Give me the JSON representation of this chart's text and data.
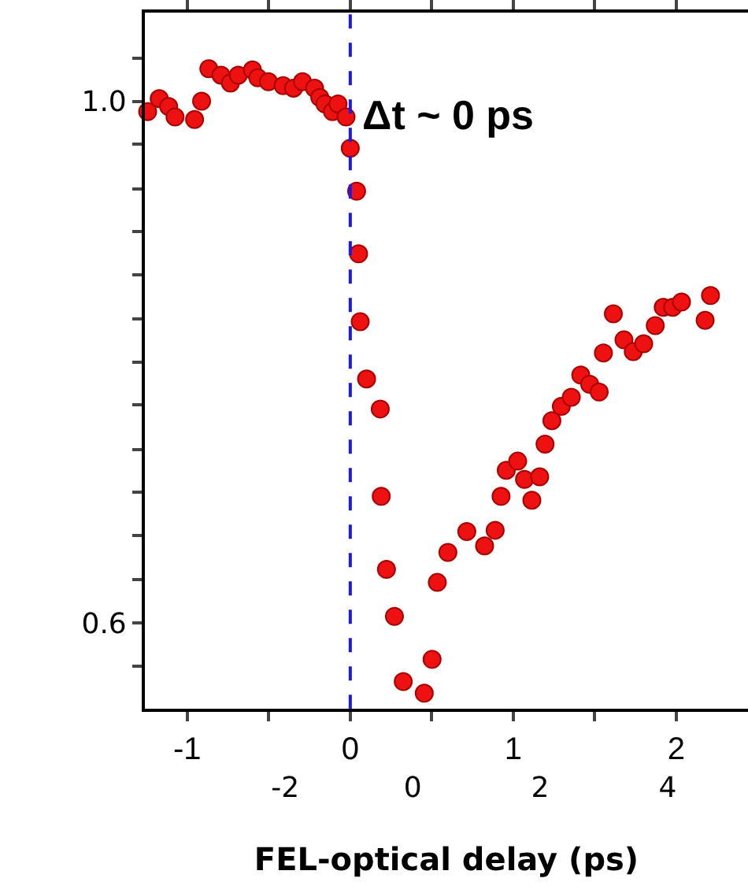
{
  "chart_data": {
    "type": "scatter",
    "xlabel": "FEL-optical delay (ps)",
    "marker": "circle",
    "x": [
      -1.243,
      -1.172,
      -1.114,
      -1.075,
      -0.955,
      -0.912,
      -0.868,
      -0.793,
      -0.735,
      -0.687,
      -0.6,
      -0.567,
      -0.502,
      -0.412,
      -0.348,
      -0.293,
      -0.219,
      -0.187,
      -0.155,
      -0.109,
      -0.075,
      -0.026,
      0.0,
      0.039,
      0.051,
      0.061,
      0.1,
      0.184,
      0.19,
      0.222,
      0.271,
      0.325,
      0.454,
      0.502,
      0.534,
      0.599,
      0.715,
      0.824,
      0.889,
      0.925,
      0.957,
      1.027,
      1.069,
      1.114,
      1.162,
      1.195,
      1.237,
      1.295,
      1.356,
      1.414,
      1.469,
      1.527,
      1.553,
      1.614,
      1.679,
      1.736,
      1.8,
      1.871,
      1.92,
      1.978,
      2.032,
      2.177,
      2.21
    ],
    "series": [
      {
        "color": "#ee1111",
        "values": [
          0.992,
          1.002,
          0.996,
          0.988,
          0.986,
          1.0,
          1.025,
          1.02,
          1.014,
          1.02,
          1.024,
          1.018,
          1.015,
          1.012,
          1.01,
          1.015,
          1.01,
          1.003,
          0.998,
          0.992,
          0.998,
          0.988,
          0.964,
          0.931,
          0.883,
          0.831,
          0.787,
          0.764,
          0.697,
          0.641,
          0.605,
          0.555,
          0.546,
          0.572,
          0.631,
          0.654,
          0.67,
          0.659,
          0.671,
          0.697,
          0.717,
          0.724,
          0.71,
          0.694,
          0.712,
          0.737,
          0.755,
          0.766,
          0.773,
          0.79,
          0.783,
          0.777,
          0.807,
          0.837,
          0.817,
          0.808,
          0.814,
          0.828,
          0.842,
          0.842,
          0.846,
          0.832,
          0.851
        ]
      }
    ],
    "xlim": [
      -1.26,
      2.44
    ],
    "xticks": [
      -1,
      {
        "value": -0.5,
        "label": null
      },
      0,
      {
        "value": 0.5,
        "label": null
      },
      1,
      {
        "value": 1.5,
        "label": null
      },
      2
    ],
    "x2lim": [
      -4.2,
      5.26
    ],
    "x2ticks": [
      -2,
      0,
      2,
      4
    ],
    "ylim": [
      0.534,
      1.068
    ],
    "yticks": [
      {
        "value": 0.567,
        "label": null
      },
      0.6,
      {
        "value": 0.633,
        "label": null
      },
      {
        "value": 0.667,
        "label": null
      },
      {
        "value": 0.7,
        "label": null
      },
      {
        "value": 0.733,
        "label": null
      },
      {
        "value": 0.767,
        "label": null
      },
      {
        "value": 0.8,
        "label": null
      },
      {
        "value": 0.833,
        "label": null
      },
      {
        "value": 0.867,
        "label": null
      },
      {
        "value": 0.9,
        "label": null
      },
      {
        "value": 0.933,
        "label": null
      },
      {
        "value": 0.967,
        "label": null
      },
      {
        "value": 1.0,
        "label": "1.0"
      },
      {
        "value": 1.033,
        "label": null
      }
    ],
    "ref_lines": [
      {
        "axis": "x",
        "value": 0,
        "color": "#1a1aee",
        "line_style": "dashed"
      }
    ],
    "annotations": [
      {
        "text": "Δt ~ 0 ps",
        "x": 0,
        "y": 0.99
      }
    ]
  }
}
